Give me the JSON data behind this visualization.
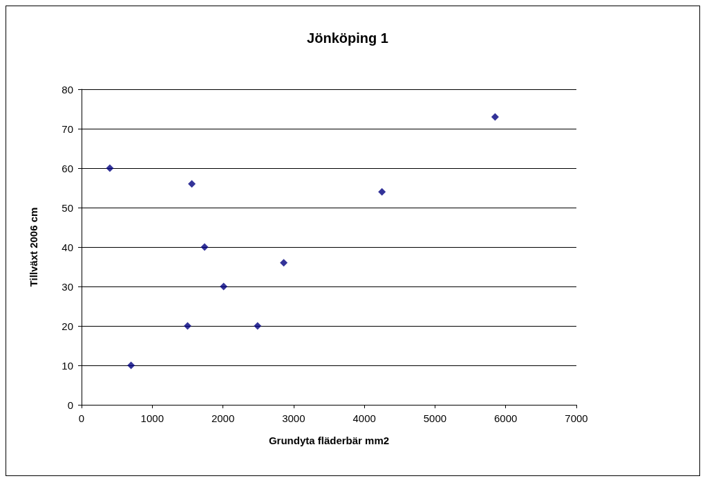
{
  "chart_data": {
    "type": "scatter",
    "title": "Jönköping 1",
    "xlabel": "Grundyta fläderbär mm2",
    "ylabel": "Tillväxt 2006 cm",
    "x": [
      400,
      700,
      1500,
      1560,
      1740,
      2010,
      2490,
      2860,
      4250,
      5850
    ],
    "values": [
      60,
      10,
      20,
      56,
      40,
      30,
      20,
      36,
      54,
      73
    ],
    "color": "#000080",
    "marker": "diamond",
    "xlim": [
      0,
      7000
    ],
    "xticks": [
      0,
      1000,
      2000,
      3000,
      4000,
      5000,
      6000,
      7000
    ],
    "ylim": [
      0,
      80
    ],
    "yticks": [
      0,
      10,
      20,
      30,
      40,
      50,
      60,
      70,
      80
    ],
    "grid": "y"
  }
}
